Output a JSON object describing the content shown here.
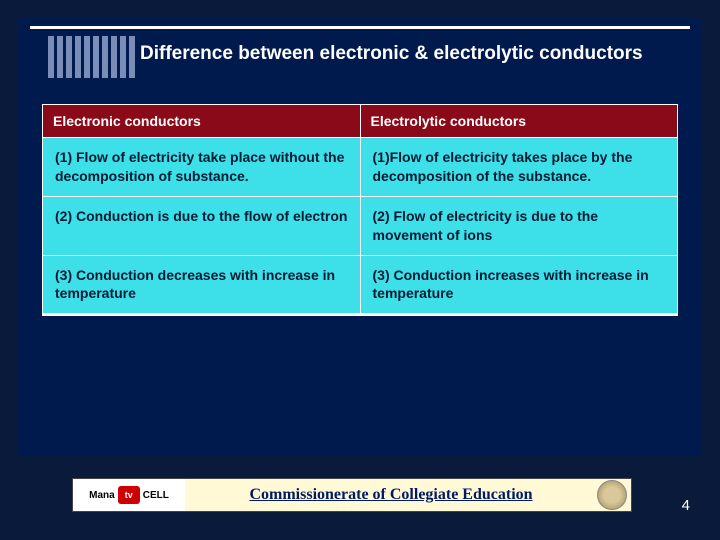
{
  "slide": {
    "title": "Difference between electronic & electrolytic conductors",
    "table": {
      "headers": [
        "Electronic conductors",
        "Electrolytic conductors"
      ],
      "rows": [
        [
          "(1)  Flow of electricity take place without the decomposition of substance.",
          "(1)Flow of electricity takes place by the decomposition of the substance."
        ],
        [
          "(2) Conduction is due to the flow of electron",
          "(2) Flow of electricity  is due to the movement of ions"
        ],
        [
          "(3) Conduction decreases with increase in temperature",
          "(3) Conduction increases with increase  in temperature"
        ]
      ]
    }
  },
  "footer": {
    "logo_left_a": "Mana",
    "logo_tv": "tv",
    "logo_left_b": "CELL",
    "title": "Commissionerate of Collegiate Education"
  },
  "page_number": "4",
  "colors": {
    "page_bg": "#0a1a3a",
    "slide_bg": "#001a4d",
    "header_bg": "#8b0a1a",
    "cell_bg": "#3de0e8",
    "footer_bg": "#fff9d6",
    "text_white": "#ffffff"
  }
}
